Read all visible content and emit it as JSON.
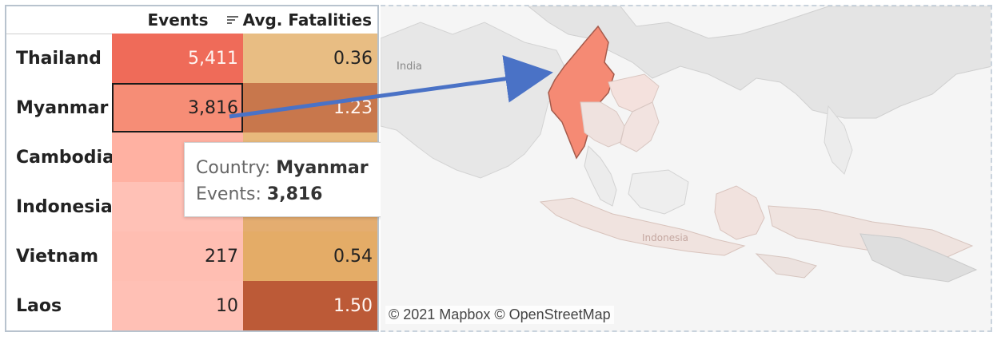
{
  "table": {
    "headers": {
      "events": "Events",
      "avg_fatalities": "Avg. Fatalities"
    },
    "rows": [
      {
        "country": "Thailand",
        "events": "5,411",
        "avg_fatalities": "0.36",
        "events_color": "#ef6b59",
        "fatal_color": "#e8bd83",
        "events_text_color": "#fff6f2",
        "fatal_text_color": "#222"
      },
      {
        "country": "Myanmar",
        "events": "3,816",
        "avg_fatalities": "1.23",
        "events_color": "#f68d76",
        "fatal_color": "#c8774c",
        "events_text_color": "#222",
        "fatal_text_color": "#fff6f2"
      },
      {
        "country": "Cambodia",
        "events": "",
        "avg_fatalities": "",
        "events_color": "#ffb1a2",
        "fatal_color": "#e8b97c",
        "events_text_color": "#222",
        "fatal_text_color": "#222"
      },
      {
        "country": "Indonesia",
        "events": "",
        "avg_fatalities": "",
        "events_color": "#ffc1b6",
        "fatal_color": "#e4ad70",
        "events_text_color": "#222",
        "fatal_text_color": "#222"
      },
      {
        "country": "Vietnam",
        "events": "217",
        "avg_fatalities": "0.54",
        "events_color": "#ffbeb2",
        "fatal_color": "#e4ac67",
        "events_text_color": "#222",
        "fatal_text_color": "#222"
      },
      {
        "country": "Laos",
        "events": "10",
        "avg_fatalities": "1.50",
        "events_color": "#ffc0b5",
        "fatal_color": "#bc5a37",
        "events_text_color": "#222",
        "fatal_text_color": "#fff6f2"
      }
    ]
  },
  "tooltip": {
    "country_label": "Country:",
    "country_value": "Myanmar",
    "events_label": "Events:",
    "events_value": "3,816"
  },
  "map": {
    "label_india": "India",
    "label_indonesia": "Indonesia",
    "attribution": "© 2021 Mapbox © OpenStreetMap"
  },
  "colors": {
    "highlight_country": "#f58a74",
    "arrow": "#4a72c6"
  },
  "icons": {
    "sort": "sort-icon"
  }
}
